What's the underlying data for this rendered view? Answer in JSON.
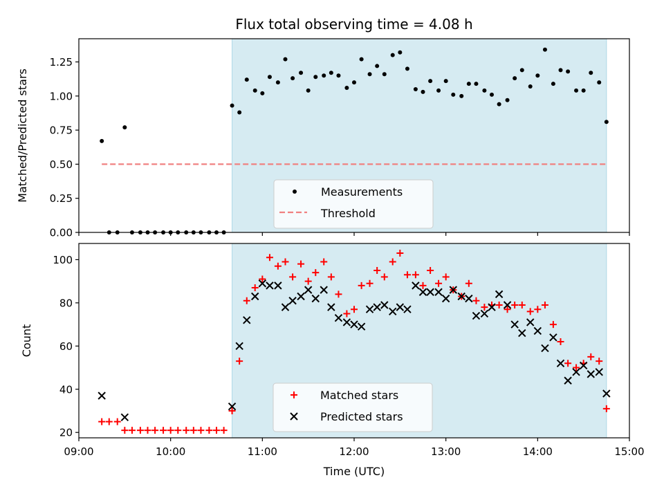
{
  "title": "Flux total observing time = 4.08 h",
  "colors": {
    "shade": "#add8e6",
    "threshold": "#f08080",
    "matched": "#ff0000",
    "predicted": "#000000",
    "measurement": "#000000"
  },
  "chart_data": [
    {
      "type": "scatter",
      "ylabel": "Matched/Predicted stars",
      "xlim": [
        9.0,
        15.0
      ],
      "ylim": [
        0.0,
        1.42
      ],
      "yticks": [
        "0.00",
        "0.25",
        "0.50",
        "0.75",
        "1.00",
        "1.25"
      ],
      "shaded_region": {
        "x_start": 10.67,
        "x_end": 14.75
      },
      "threshold": {
        "y": 0.5,
        "x_start": 9.25,
        "x_end": 14.75
      },
      "legend": {
        "placement": "lower center",
        "entries": [
          "Measurements",
          "Threshold"
        ]
      },
      "series": [
        {
          "name": "Measurements",
          "x": [
            9.25,
            9.33,
            9.42,
            9.5,
            9.58,
            9.67,
            9.75,
            9.83,
            9.92,
            10.0,
            10.08,
            10.17,
            10.25,
            10.33,
            10.42,
            10.5,
            10.58,
            10.67,
            10.75,
            10.83,
            10.92,
            11.0,
            11.08,
            11.17,
            11.25,
            11.33,
            11.42,
            11.5,
            11.58,
            11.67,
            11.75,
            11.83,
            11.92,
            12.0,
            12.08,
            12.17,
            12.25,
            12.33,
            12.42,
            12.5,
            12.58,
            12.67,
            12.75,
            12.83,
            12.92,
            13.0,
            13.08,
            13.17,
            13.25,
            13.33,
            13.42,
            13.5,
            13.58,
            13.67,
            13.75,
            13.83,
            13.92,
            14.0,
            14.08,
            14.17,
            14.25,
            14.33,
            14.42,
            14.5,
            14.58,
            14.67,
            14.75
          ],
          "y": [
            0.67,
            0.0,
            0.0,
            0.77,
            0.0,
            0.0,
            0.0,
            0.0,
            0.0,
            0.0,
            0.0,
            0.0,
            0.0,
            0.0,
            0.0,
            0.0,
            0.0,
            0.93,
            0.88,
            1.12,
            1.04,
            1.02,
            1.14,
            1.1,
            1.27,
            1.13,
            1.17,
            1.04,
            1.14,
            1.15,
            1.17,
            1.15,
            1.06,
            1.1,
            1.27,
            1.16,
            1.22,
            1.16,
            1.3,
            1.32,
            1.2,
            1.05,
            1.03,
            1.11,
            1.04,
            1.11,
            1.01,
            1.0,
            1.09,
            1.09,
            1.04,
            1.01,
            0.94,
            0.97,
            1.13,
            1.19,
            1.07,
            1.15,
            1.34,
            1.09,
            1.19,
            1.18,
            1.04,
            1.04,
            1.17,
            1.1,
            0.81
          ]
        }
      ]
    },
    {
      "type": "scatter",
      "xlabel": "Time (UTC)",
      "ylabel": "Count",
      "xlim": [
        9.0,
        15.0
      ],
      "ylim": [
        17.5,
        107.5
      ],
      "xticks": [
        "09:00",
        "10:00",
        "11:00",
        "12:00",
        "13:00",
        "14:00",
        "15:00"
      ],
      "yticks": [
        "20",
        "40",
        "60",
        "80",
        "100"
      ],
      "shaded_region": {
        "x_start": 10.67,
        "x_end": 14.75
      },
      "legend": {
        "placement": "lower center",
        "entries": [
          "Matched stars",
          "Predicted stars"
        ]
      },
      "series": [
        {
          "name": "Matched stars",
          "x": [
            9.25,
            9.33,
            9.42,
            9.5,
            9.58,
            9.67,
            9.75,
            9.83,
            9.92,
            10.0,
            10.08,
            10.17,
            10.25,
            10.33,
            10.42,
            10.5,
            10.58,
            10.67,
            10.75,
            10.83,
            10.92,
            11.0,
            11.08,
            11.17,
            11.25,
            11.33,
            11.42,
            11.5,
            11.58,
            11.67,
            11.75,
            11.83,
            11.92,
            12.0,
            12.08,
            12.17,
            12.25,
            12.33,
            12.42,
            12.5,
            12.58,
            12.67,
            12.75,
            12.83,
            12.92,
            13.0,
            13.08,
            13.17,
            13.25,
            13.33,
            13.42,
            13.5,
            13.58,
            13.67,
            13.75,
            13.83,
            13.92,
            14.0,
            14.08,
            14.17,
            14.25,
            14.33,
            14.42,
            14.5,
            14.58,
            14.67,
            14.75
          ],
          "y": [
            25,
            25,
            25,
            21,
            21,
            21,
            21,
            21,
            21,
            21,
            21,
            21,
            21,
            21,
            21,
            21,
            21,
            30,
            53,
            81,
            87,
            91,
            101,
            97,
            99,
            92,
            98,
            90,
            94,
            99,
            92,
            84,
            75,
            77,
            88,
            89,
            95,
            92,
            99,
            103,
            93,
            93,
            88,
            95,
            89,
            92,
            86,
            83,
            89,
            81,
            78,
            79,
            79,
            77,
            79,
            79,
            76,
            77,
            79,
            70,
            62,
            52,
            50,
            52,
            55,
            53,
            31
          ]
        },
        {
          "name": "Predicted stars",
          "x": [
            9.25,
            9.5,
            10.67,
            10.75,
            10.83,
            10.92,
            11.0,
            11.08,
            11.17,
            11.25,
            11.33,
            11.42,
            11.5,
            11.58,
            11.67,
            11.75,
            11.83,
            11.92,
            12.0,
            12.08,
            12.17,
            12.25,
            12.33,
            12.42,
            12.5,
            12.58,
            12.67,
            12.75,
            12.83,
            12.92,
            13.0,
            13.08,
            13.17,
            13.25,
            13.33,
            13.42,
            13.5,
            13.58,
            13.67,
            13.75,
            13.83,
            13.92,
            14.0,
            14.08,
            14.17,
            14.25,
            14.33,
            14.42,
            14.5,
            14.58,
            14.67,
            14.75
          ],
          "y": [
            37,
            27,
            32,
            60,
            72,
            83,
            89,
            88,
            88,
            78,
            81,
            83,
            86,
            82,
            86,
            78,
            73,
            71,
            70,
            69,
            77,
            78,
            79,
            76,
            78,
            77,
            88,
            85,
            85,
            85,
            82,
            86,
            83,
            82,
            74,
            75,
            78,
            84,
            79,
            70,
            66,
            71,
            67,
            59,
            64,
            52,
            44,
            48,
            51,
            47,
            48,
            38
          ]
        }
      ]
    }
  ]
}
